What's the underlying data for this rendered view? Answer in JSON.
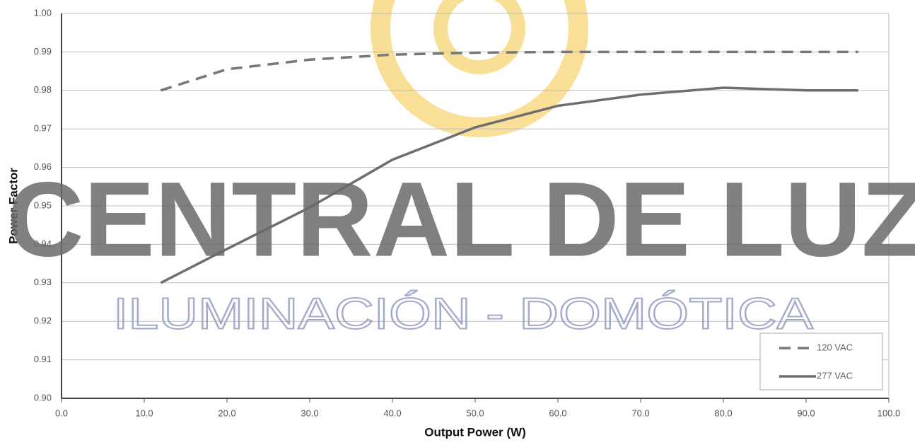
{
  "chart_data": {
    "type": "line",
    "xlabel": "Output Power (W)",
    "ylabel": "Power Factor",
    "watermark": [
      "CENTRAL DE LUZ",
      "ILUMINACIÓN - DOMÓTICA"
    ],
    "xlim": [
      0,
      100
    ],
    "ylim": [
      0.9,
      1.0
    ],
    "xticks": [
      {
        "value": 0,
        "label": "0.0"
      },
      {
        "value": 10,
        "label": "10.0"
      },
      {
        "value": 20,
        "label": "20.0"
      },
      {
        "value": 30,
        "label": "30.0"
      },
      {
        "value": 40,
        "label": "40.0"
      },
      {
        "value": 50,
        "label": "50.0"
      },
      {
        "value": 60,
        "label": "60.0"
      },
      {
        "value": 70,
        "label": "70.0"
      },
      {
        "value": 80,
        "label": "80.0"
      },
      {
        "value": 90,
        "label": "90.0"
      },
      {
        "value": 100,
        "label": "100.0"
      }
    ],
    "yticks": [
      {
        "value": 0.9,
        "label": "0.90"
      },
      {
        "value": 0.91,
        "label": "0.91"
      },
      {
        "value": 0.92,
        "label": "0.92"
      },
      {
        "value": 0.93,
        "label": "0.93"
      },
      {
        "value": 0.94,
        "label": "0.94"
      },
      {
        "value": 0.95,
        "label": "0.95"
      },
      {
        "value": 0.96,
        "label": "0.96"
      },
      {
        "value": 0.97,
        "label": "0.97"
      },
      {
        "value": 0.98,
        "label": "0.98"
      },
      {
        "value": 0.99,
        "label": "0.99"
      },
      {
        "value": 1.0,
        "label": "1.00"
      }
    ],
    "grid": true,
    "legend": "lower right",
    "series": [
      {
        "name": "120 VAC",
        "color": "#777777",
        "dashed": true,
        "x": [
          12,
          20,
          30,
          40,
          50,
          60,
          70,
          80,
          90,
          96.3
        ],
        "values": [
          0.98,
          0.9855,
          0.988,
          0.9893,
          0.9898,
          0.99,
          0.99,
          0.99,
          0.99,
          0.99
        ]
      },
      {
        "name": "277 VAC",
        "color": "#6e6e6e",
        "dashed": false,
        "x": [
          12,
          20,
          30,
          40,
          50,
          60,
          70,
          80,
          90,
          96.3
        ],
        "values": [
          0.93,
          0.9388,
          0.9496,
          0.962,
          0.9704,
          0.976,
          0.9789,
          0.9807,
          0.98,
          0.98
        ]
      }
    ]
  }
}
